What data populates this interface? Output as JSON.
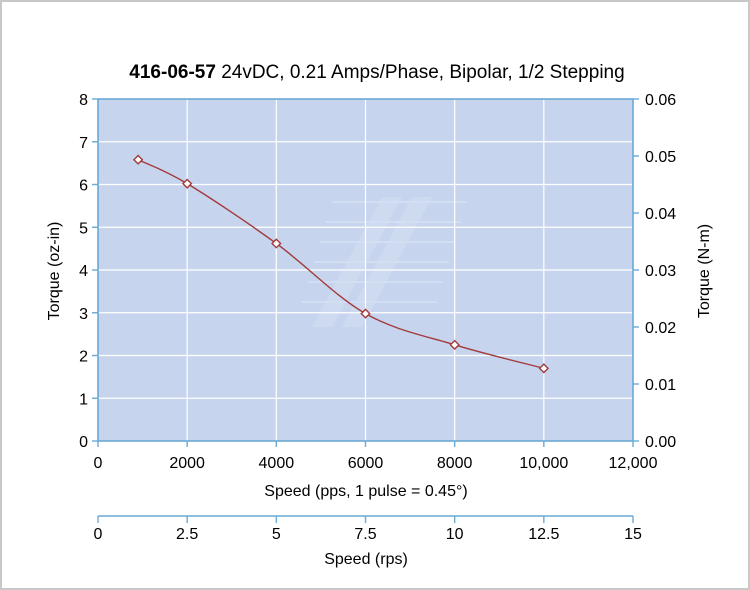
{
  "chart_data": {
    "type": "line",
    "title_bold": "416-06-57",
    "title_rest": " 24vDC, 0.21 Amps/Phase, Bipolar, 1/2 Stepping",
    "xlabel": "Speed (pps, 1 pulse = 0.45°)",
    "ylabel_left": "Torque (oz-in)",
    "ylabel_right": "Torque (N-m)",
    "xlim": [
      0,
      12000
    ],
    "ylim": [
      0,
      8
    ],
    "ylim_right": [
      0,
      0.06
    ],
    "grid": true,
    "x_ticks": [
      "0",
      "2000",
      "4000",
      "6000",
      "8000",
      "10,000",
      "12,000"
    ],
    "y_ticks": [
      "0",
      "1",
      "2",
      "3",
      "4",
      "5",
      "6",
      "7",
      "8"
    ],
    "y_right_ticks": [
      "0.00",
      "0.01",
      "0.02",
      "0.03",
      "0.04",
      "0.05",
      "0.06"
    ],
    "series": [
      {
        "x": [
          900,
          2000,
          4000,
          6000,
          8000,
          10000
        ],
        "y": [
          6.58,
          6.02,
          4.62,
          2.98,
          2.25,
          1.7
        ]
      }
    ],
    "secondary_axis": {
      "label": "Speed (rps)",
      "ticks": [
        "0",
        "2.5",
        "5",
        "7.5",
        "10",
        "12.5",
        "15"
      ],
      "range": [
        0,
        15
      ]
    },
    "colors": {
      "plot_bg": "#c6d4ee",
      "grid": "#ffffff",
      "axis": "#6aaad6",
      "line": "#a33a3a",
      "marker_fill": "#ffffff"
    }
  }
}
